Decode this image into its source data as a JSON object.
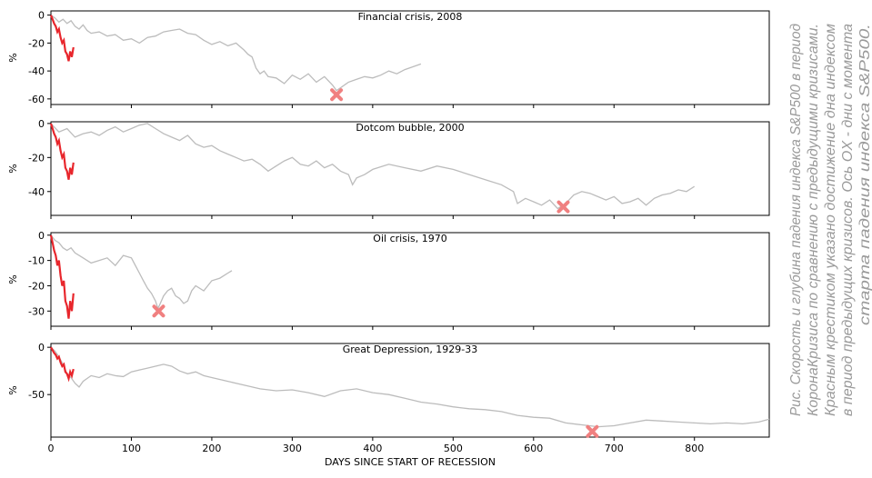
{
  "chart_data": {
    "type": "line",
    "xlabel": "DAYS SINCE START OF RECESSION",
    "xlim": [
      0,
      893
    ],
    "xticks": [
      0,
      100,
      200,
      300,
      400,
      500,
      600,
      700,
      800
    ],
    "colors": {
      "current": "#e8262c",
      "past": "#bcbcbc",
      "marker": "#f08080"
    },
    "panels": [
      {
        "title": "Financial crisis, 2008",
        "ylabel": "%",
        "ylim": [
          -64,
          3
        ],
        "yticks": [
          0,
          -20,
          -40,
          -60
        ],
        "past": {
          "x": [
            0,
            5,
            10,
            15,
            20,
            25,
            30,
            35,
            40,
            45,
            50,
            60,
            70,
            80,
            90,
            100,
            110,
            120,
            130,
            140,
            150,
            160,
            170,
            180,
            190,
            200,
            210,
            220,
            230,
            240,
            245,
            250,
            255,
            260,
            265,
            270,
            280,
            290,
            300,
            310,
            320,
            330,
            340,
            350,
            355,
            360,
            370,
            380,
            390,
            400,
            410,
            420,
            430,
            440,
            450,
            460
          ],
          "y": [
            0,
            -2,
            -5,
            -3,
            -6,
            -4,
            -8,
            -10,
            -7,
            -11,
            -13,
            -12,
            -15,
            -14,
            -18,
            -17,
            -20,
            -16,
            -15,
            -12,
            -11,
            -10,
            -13,
            -14,
            -18,
            -21,
            -19,
            -22,
            -20,
            -25,
            -28,
            -30,
            -38,
            -42,
            -40,
            -44,
            -45,
            -49,
            -43,
            -46,
            -42,
            -48,
            -44,
            -50,
            -54,
            -52,
            -48,
            -46,
            -44,
            -45,
            -43,
            -40,
            -42,
            -39,
            -37,
            -35
          ]
        },
        "current": {
          "x": [
            0,
            2,
            4,
            6,
            8,
            10,
            12,
            14,
            16,
            18,
            20,
            22,
            24,
            26,
            28
          ],
          "y": [
            0,
            -3,
            -6,
            -8,
            -12,
            -10,
            -16,
            -20,
            -18,
            -26,
            -28,
            -33,
            -26,
            -30,
            -23
          ]
        },
        "bottom": {
          "x": 355,
          "y": -57
        }
      },
      {
        "title": "Dotcom bubble, 2000",
        "ylabel": "%",
        "ylim": [
          -54,
          1
        ],
        "yticks": [
          0,
          -20,
          -40
        ],
        "past": {
          "x": [
            0,
            10,
            20,
            30,
            40,
            50,
            60,
            70,
            80,
            90,
            100,
            110,
            120,
            130,
            140,
            150,
            160,
            170,
            180,
            190,
            200,
            210,
            220,
            230,
            240,
            250,
            260,
            270,
            280,
            290,
            300,
            310,
            320,
            330,
            340,
            350,
            360,
            370,
            375,
            380,
            390,
            400,
            420,
            440,
            460,
            480,
            500,
            520,
            540,
            560,
            575,
            580,
            590,
            600,
            610,
            620,
            630,
            640,
            650,
            660,
            670,
            680,
            690,
            700,
            710,
            720,
            730,
            740,
            750,
            760,
            770,
            780,
            790,
            800
          ],
          "y": [
            0,
            -5,
            -3,
            -8,
            -6,
            -5,
            -7,
            -4,
            -2,
            -5,
            -3,
            -1,
            0,
            -3,
            -6,
            -8,
            -10,
            -7,
            -12,
            -14,
            -13,
            -16,
            -18,
            -20,
            -22,
            -21,
            -24,
            -28,
            -25,
            -22,
            -20,
            -24,
            -25,
            -22,
            -26,
            -24,
            -28,
            -30,
            -36,
            -32,
            -30,
            -27,
            -24,
            -26,
            -28,
            -25,
            -27,
            -30,
            -33,
            -36,
            -40,
            -47,
            -44,
            -46,
            -48,
            -45,
            -50,
            -47,
            -42,
            -40,
            -41,
            -43,
            -45,
            -43,
            -47,
            -46,
            -44,
            -48,
            -44,
            -42,
            -41,
            -39,
            -40,
            -37
          ]
        },
        "current": {
          "x": [
            0,
            2,
            4,
            6,
            8,
            10,
            12,
            14,
            16,
            18,
            20,
            22,
            24,
            26,
            28
          ],
          "y": [
            0,
            -3,
            -6,
            -8,
            -12,
            -10,
            -16,
            -20,
            -18,
            -26,
            -28,
            -33,
            -26,
            -30,
            -23
          ]
        },
        "bottom": {
          "x": 637,
          "y": -49
        }
      },
      {
        "title": "Oil crisis, 1970",
        "ylabel": "%",
        "ylim": [
          -36,
          1
        ],
        "yticks": [
          0,
          -10,
          -20,
          -30
        ],
        "past": {
          "x": [
            0,
            5,
            10,
            15,
            20,
            25,
            30,
            40,
            50,
            60,
            70,
            80,
            90,
            100,
            105,
            110,
            115,
            120,
            125,
            130,
            133,
            136,
            140,
            145,
            150,
            155,
            160,
            165,
            170,
            175,
            180,
            190,
            200,
            210,
            220,
            225
          ],
          "y": [
            0,
            -2,
            -3,
            -5,
            -6,
            -5,
            -7,
            -9,
            -11,
            -10,
            -9,
            -12,
            -8,
            -9,
            -12,
            -15,
            -18,
            -21,
            -23,
            -26,
            -29,
            -27,
            -24,
            -22,
            -21,
            -24,
            -25,
            -27,
            -26,
            -22,
            -20,
            -22,
            -18,
            -17,
            -15,
            -14
          ]
        },
        "current": {
          "x": [
            0,
            2,
            4,
            6,
            8,
            10,
            12,
            14,
            16,
            18,
            20,
            22,
            24,
            26,
            28
          ],
          "y": [
            0,
            -3,
            -6,
            -8,
            -12,
            -10,
            -16,
            -20,
            -18,
            -26,
            -28,
            -33,
            -26,
            -30,
            -23
          ]
        },
        "bottom": {
          "x": 134,
          "y": -30
        }
      },
      {
        "title": "Great Depression, 1929-33",
        "ylabel": "%",
        "ylim": [
          -95,
          4
        ],
        "yticks": [
          0,
          -50
        ],
        "past": {
          "x": [
            0,
            5,
            10,
            15,
            20,
            25,
            30,
            35,
            40,
            45,
            50,
            60,
            70,
            80,
            90,
            100,
            110,
            120,
            130,
            140,
            150,
            160,
            170,
            180,
            190,
            200,
            220,
            240,
            260,
            280,
            300,
            320,
            340,
            360,
            380,
            400,
            420,
            440,
            460,
            480,
            500,
            520,
            540,
            560,
            580,
            600,
            620,
            640,
            660,
            680,
            700,
            720,
            740,
            760,
            780,
            800,
            820,
            840,
            860,
            880,
            893
          ],
          "y": [
            0,
            -4,
            -10,
            -18,
            -28,
            -32,
            -38,
            -42,
            -36,
            -33,
            -30,
            -32,
            -28,
            -30,
            -31,
            -26,
            -24,
            -22,
            -20,
            -18,
            -20,
            -25,
            -28,
            -26,
            -30,
            -32,
            -36,
            -40,
            -44,
            -46,
            -45,
            -48,
            -52,
            -46,
            -44,
            -48,
            -50,
            -54,
            -58,
            -60,
            -63,
            -65,
            -66,
            -68,
            -72,
            -74,
            -75,
            -80,
            -82,
            -84,
            -83,
            -80,
            -77,
            -78,
            -79,
            -80,
            -81,
            -80,
            -81,
            -79,
            -76
          ]
        },
        "current": {
          "x": [
            0,
            2,
            4,
            6,
            8,
            10,
            12,
            14,
            16,
            18,
            20,
            22,
            24,
            26,
            28
          ],
          "y": [
            0,
            -3,
            -6,
            -8,
            -12,
            -10,
            -16,
            -20,
            -18,
            -26,
            -28,
            -33,
            -26,
            -30,
            -23
          ]
        },
        "bottom": {
          "x": 673,
          "y": -89
        }
      }
    ]
  },
  "caption_lines": [
    "Рис. Скорость и глубина падения индекса S&P500 в период",
    "КоронаКризиса по сравнению с предыдущими кризисами.",
    "Красным крестиком указано достижение дна индексом",
    "в период предыдущих кризисов. Ось OX - дни с момента",
    "старта падения индекса S&P500."
  ]
}
